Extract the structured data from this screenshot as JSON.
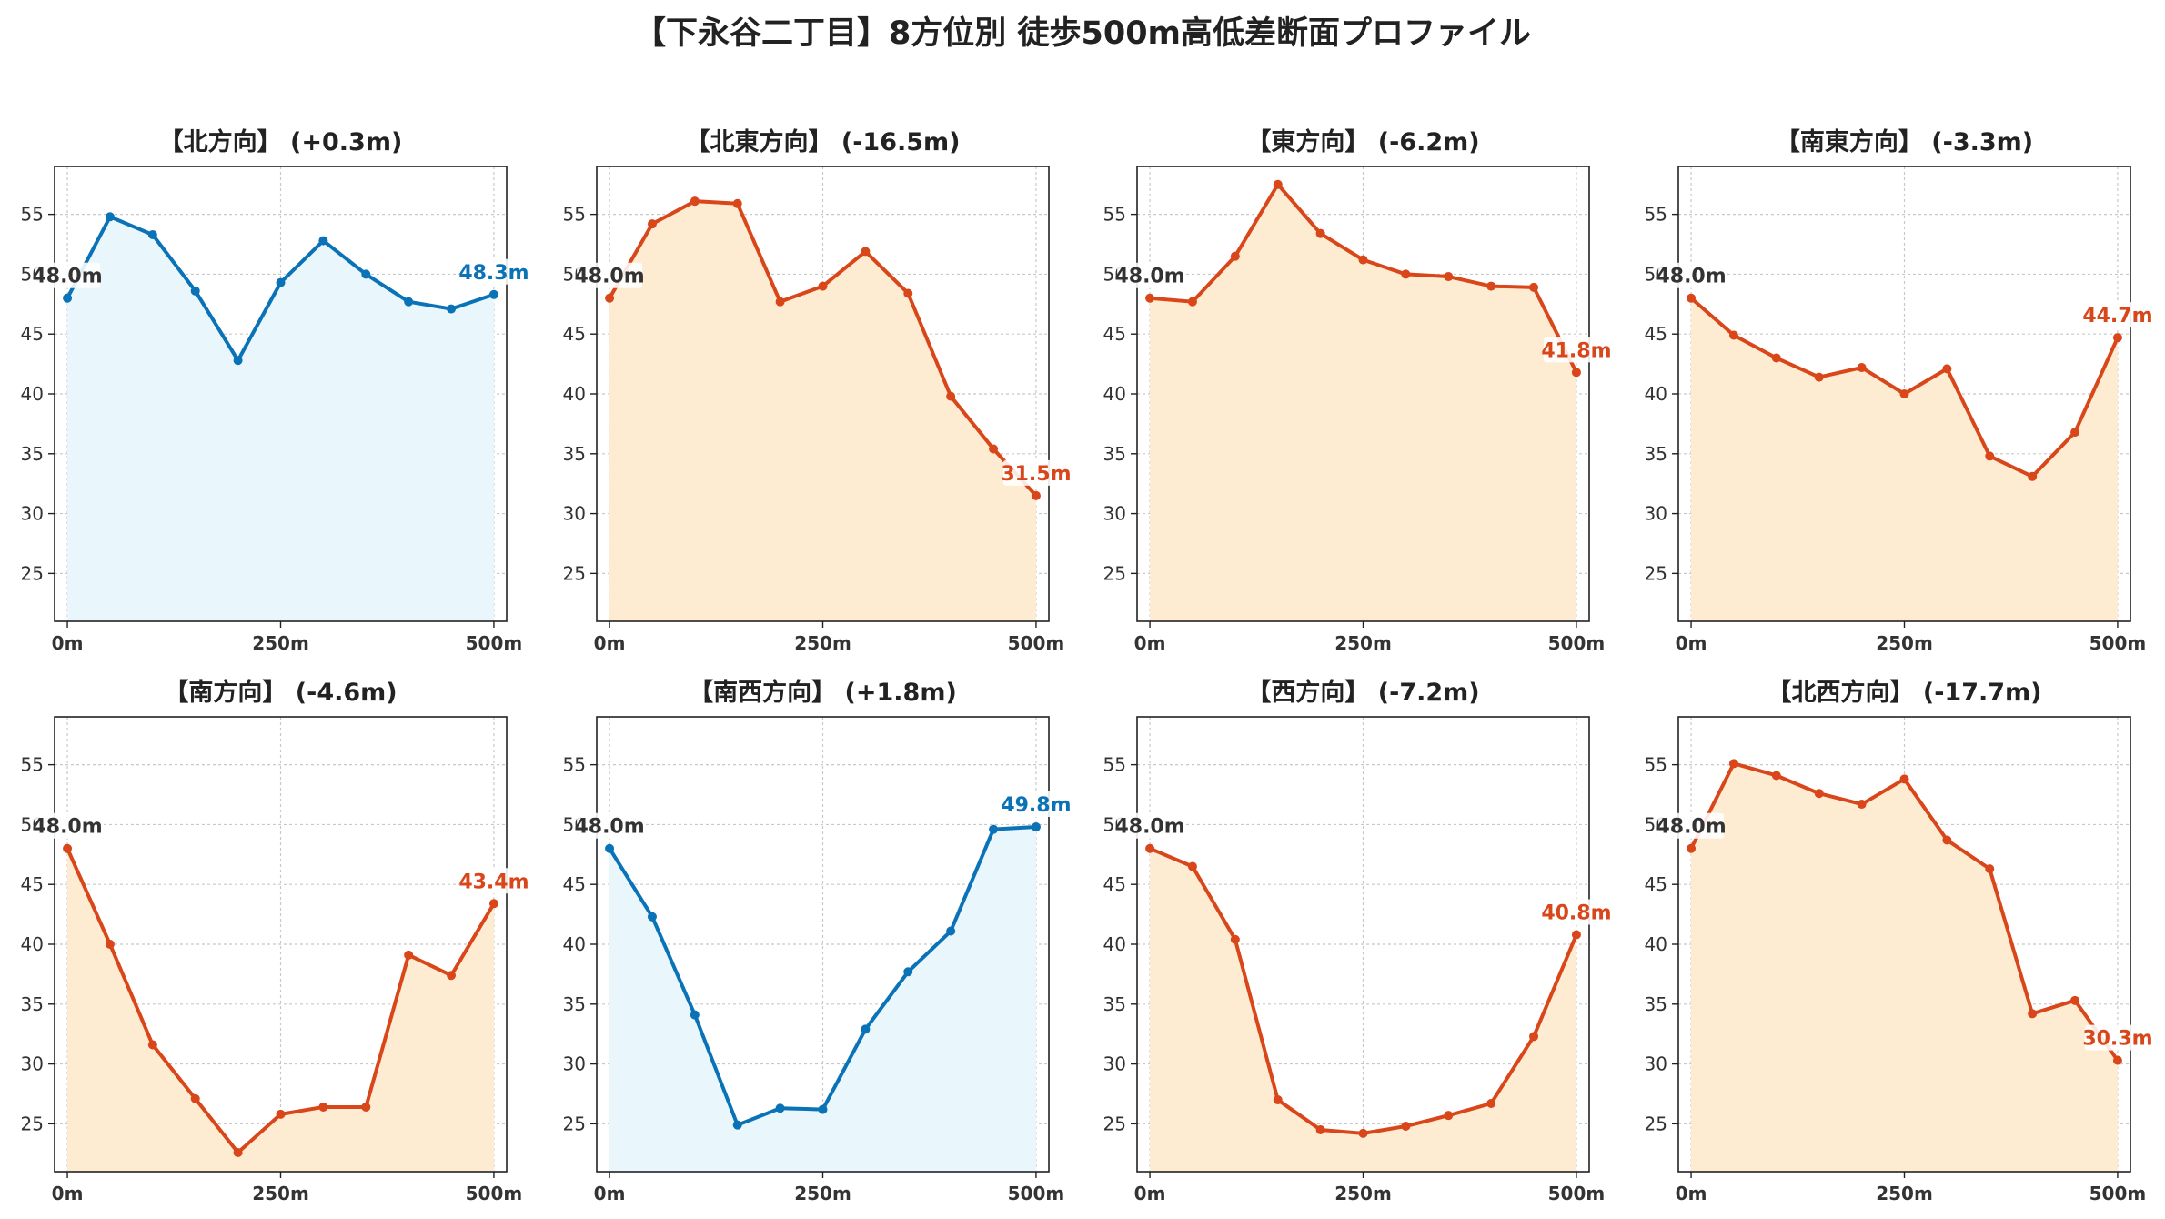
{
  "title": "【下永谷二丁目】8方位別 徒歩500m高低差断面プロファイル",
  "colors": {
    "up_line": "#0a72b6",
    "up_fill": "#e9f6fc",
    "down_line": "#d8461a",
    "down_fill": "#feecd2",
    "start_label": "#333333",
    "grid": "#c8c8c8"
  },
  "chart_data": [
    {
      "type": "area",
      "title": "【北方向】 (+0.3m)",
      "trend": "up",
      "x": [
        0,
        50,
        100,
        150,
        200,
        250,
        300,
        350,
        400,
        450,
        500
      ],
      "y": [
        48.0,
        54.8,
        53.3,
        48.6,
        42.8,
        49.3,
        52.8,
        50.0,
        47.7,
        47.1,
        48.3
      ],
      "start_label": "48.0m",
      "end_label": "48.3m",
      "xticks": [
        "0m",
        "250m",
        "500m"
      ],
      "yticks": [
        "25",
        "30",
        "35",
        "40",
        "45",
        "50",
        "55"
      ],
      "ylim": [
        21,
        59
      ],
      "xlim": [
        -15,
        515
      ],
      "grid": true
    },
    {
      "type": "area",
      "title": "【北東方向】 (-16.5m)",
      "trend": "down",
      "x": [
        0,
        50,
        100,
        150,
        200,
        250,
        300,
        350,
        400,
        450,
        500
      ],
      "y": [
        48.0,
        54.2,
        56.1,
        55.9,
        47.7,
        49.0,
        51.9,
        48.4,
        39.8,
        35.4,
        31.5
      ],
      "start_label": "48.0m",
      "end_label": "31.5m",
      "xticks": [
        "0m",
        "250m",
        "500m"
      ],
      "yticks": [
        "25",
        "30",
        "35",
        "40",
        "45",
        "50",
        "55"
      ],
      "ylim": [
        21,
        59
      ],
      "xlim": [
        -15,
        515
      ],
      "grid": true
    },
    {
      "type": "area",
      "title": "【東方向】 (-6.2m)",
      "trend": "down",
      "x": [
        0,
        50,
        100,
        150,
        200,
        250,
        300,
        350,
        400,
        450,
        500
      ],
      "y": [
        48.0,
        47.7,
        51.5,
        57.5,
        53.4,
        51.2,
        50.0,
        49.8,
        49.0,
        48.9,
        41.8
      ],
      "start_label": "48.0m",
      "end_label": "41.8m",
      "xticks": [
        "0m",
        "250m",
        "500m"
      ],
      "yticks": [
        "25",
        "30",
        "35",
        "40",
        "45",
        "50",
        "55"
      ],
      "ylim": [
        21,
        59
      ],
      "xlim": [
        -15,
        515
      ],
      "grid": true
    },
    {
      "type": "area",
      "title": "【南東方向】 (-3.3m)",
      "trend": "down",
      "x": [
        0,
        50,
        100,
        150,
        200,
        250,
        300,
        350,
        400,
        450,
        500
      ],
      "y": [
        48.0,
        44.9,
        43.0,
        41.4,
        42.2,
        40.0,
        42.1,
        34.8,
        33.1,
        36.8,
        44.7
      ],
      "start_label": "48.0m",
      "end_label": "44.7m",
      "xticks": [
        "0m",
        "250m",
        "500m"
      ],
      "yticks": [
        "25",
        "30",
        "35",
        "40",
        "45",
        "50",
        "55"
      ],
      "ylim": [
        21,
        59
      ],
      "xlim": [
        -15,
        515
      ],
      "grid": true
    },
    {
      "type": "area",
      "title": "【南方向】 (-4.6m)",
      "trend": "down",
      "x": [
        0,
        50,
        100,
        150,
        200,
        250,
        300,
        350,
        400,
        450,
        500
      ],
      "y": [
        48.0,
        40.0,
        31.6,
        27.1,
        22.6,
        25.8,
        26.4,
        26.4,
        39.1,
        37.4,
        43.4
      ],
      "start_label": "48.0m",
      "end_label": "43.4m",
      "xticks": [
        "0m",
        "250m",
        "500m"
      ],
      "yticks": [
        "25",
        "30",
        "35",
        "40",
        "45",
        "50",
        "55"
      ],
      "ylim": [
        21,
        59
      ],
      "xlim": [
        -15,
        515
      ],
      "grid": true
    },
    {
      "type": "area",
      "title": "【南西方向】 (+1.8m)",
      "trend": "up",
      "x": [
        0,
        50,
        100,
        150,
        200,
        250,
        300,
        350,
        400,
        450,
        500
      ],
      "y": [
        48.0,
        42.3,
        34.1,
        24.9,
        26.3,
        26.2,
        32.9,
        37.7,
        41.1,
        49.6,
        49.8
      ],
      "start_label": "48.0m",
      "end_label": "49.8m",
      "xticks": [
        "0m",
        "250m",
        "500m"
      ],
      "yticks": [
        "25",
        "30",
        "35",
        "40",
        "45",
        "50",
        "55"
      ],
      "ylim": [
        21,
        59
      ],
      "xlim": [
        -15,
        515
      ],
      "grid": true
    },
    {
      "type": "area",
      "title": "【西方向】 (-7.2m)",
      "trend": "down",
      "x": [
        0,
        50,
        100,
        150,
        200,
        250,
        300,
        350,
        400,
        450,
        500
      ],
      "y": [
        48.0,
        46.5,
        40.4,
        27.0,
        24.5,
        24.2,
        24.8,
        25.7,
        26.7,
        32.3,
        40.8
      ],
      "start_label": "48.0m",
      "end_label": "40.8m",
      "xticks": [
        "0m",
        "250m",
        "500m"
      ],
      "yticks": [
        "25",
        "30",
        "35",
        "40",
        "45",
        "50",
        "55"
      ],
      "ylim": [
        21,
        59
      ],
      "xlim": [
        -15,
        515
      ],
      "grid": true
    },
    {
      "type": "area",
      "title": "【北西方向】 (-17.7m)",
      "trend": "down",
      "x": [
        0,
        50,
        100,
        150,
        200,
        250,
        300,
        350,
        400,
        450,
        500
      ],
      "y": [
        48.0,
        55.1,
        54.1,
        52.6,
        51.7,
        53.8,
        48.7,
        46.3,
        34.2,
        35.3,
        30.3
      ],
      "start_label": "48.0m",
      "end_label": "30.3m",
      "xticks": [
        "0m",
        "250m",
        "500m"
      ],
      "yticks": [
        "25",
        "30",
        "35",
        "40",
        "45",
        "50",
        "55"
      ],
      "ylim": [
        21,
        59
      ],
      "xlim": [
        -15,
        515
      ],
      "grid": true
    }
  ]
}
